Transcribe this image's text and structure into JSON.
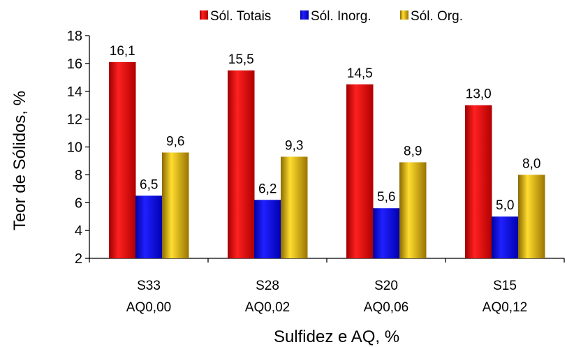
{
  "chart_data": {
    "type": "bar",
    "title": "",
    "xlabel": "Sulfidez e AQ, %",
    "ylabel": "Teor de Sólidos, %",
    "ylim": [
      2,
      18
    ],
    "yticks": [
      2,
      4,
      6,
      8,
      10,
      12,
      14,
      16,
      18
    ],
    "grid": false,
    "legend_position": "top",
    "categories": [
      [
        "S33",
        "AQ0,00"
      ],
      [
        "S28",
        "AQ0,02"
      ],
      [
        "S20",
        "AQ0,06"
      ],
      [
        "S15",
        "AQ0,12"
      ]
    ],
    "series": [
      {
        "name": "Sól. Totais",
        "color": "#e00000",
        "values": [
          16.1,
          15.5,
          14.5,
          13.0
        ],
        "labels": [
          "16,1",
          "15,5",
          "14,5",
          "13,0"
        ]
      },
      {
        "name": "Sól. Inorg.",
        "color": "#0000e0",
        "values": [
          6.5,
          6.2,
          5.6,
          5.0
        ],
        "labels": [
          "6,5",
          "6,2",
          "5,6",
          "5,0"
        ]
      },
      {
        "name": "Sól. Org.",
        "color": "#c8a000",
        "values": [
          9.6,
          9.3,
          8.9,
          8.0
        ],
        "labels": [
          "9,6",
          "9,3",
          "8,9",
          "8,0"
        ]
      }
    ]
  }
}
